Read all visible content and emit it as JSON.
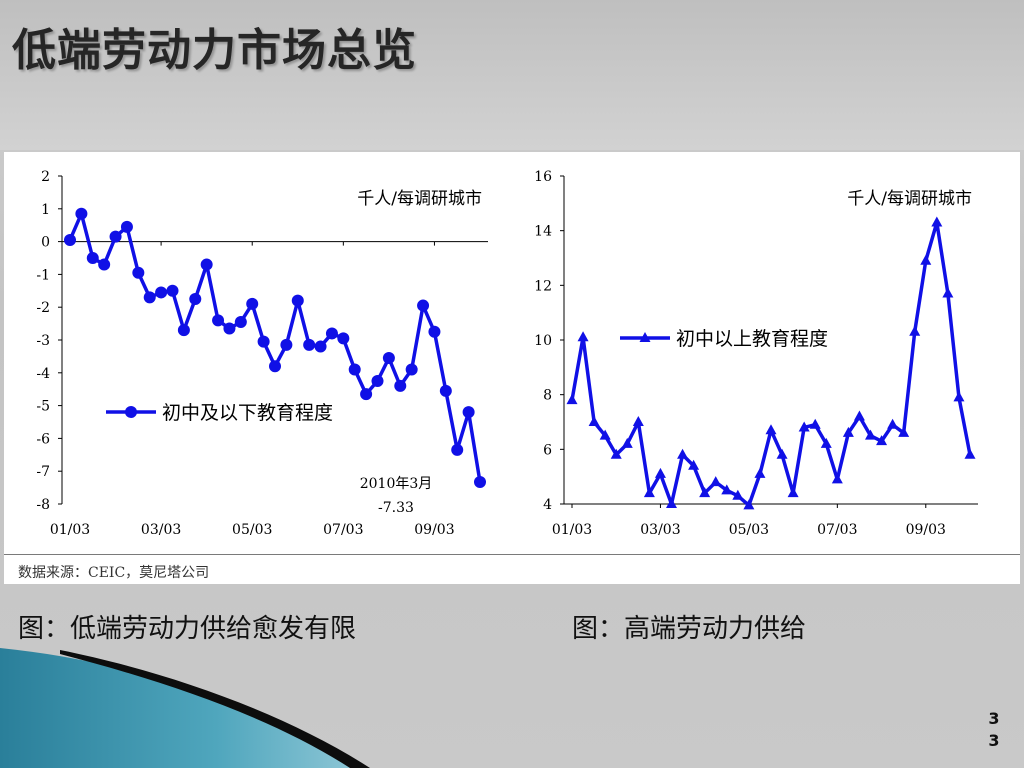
{
  "slide": {
    "title": "低端劳动力市场总览",
    "page_number": "33",
    "source_note": "数据来源：CEIC，莫尼塔公司",
    "caption_left": "图：低端劳动力供给愈发有限",
    "caption_right": "图：高端劳动力供给"
  },
  "colors": {
    "series": "#1010e6",
    "axis": "#000000",
    "title": "#262626"
  },
  "chart_data": [
    {
      "type": "line",
      "unit_label": "千人/每调研城市",
      "x_tick_labels": [
        "01/03",
        "03/03",
        "05/03",
        "07/03",
        "09/03"
      ],
      "x_tick_index": [
        0,
        8,
        16,
        24,
        32
      ],
      "y_ticks": [
        2,
        1,
        0,
        -1,
        -2,
        -3,
        -4,
        -5,
        -6,
        -7,
        -8
      ],
      "ylim": [
        -8,
        2
      ],
      "series": [
        {
          "name": "初中及以下教育程度",
          "marker": "circle",
          "values": [
            0.05,
            0.85,
            -0.5,
            -0.7,
            0.15,
            0.45,
            -0.95,
            -1.7,
            -1.55,
            -1.5,
            -2.7,
            -1.75,
            -0.7,
            -2.4,
            -2.65,
            -2.45,
            -1.9,
            -3.05,
            -3.8,
            -3.15,
            -1.8,
            -3.15,
            -3.2,
            -2.8,
            -2.95,
            -3.9,
            -4.65,
            -4.25,
            -3.55,
            -4.4,
            -3.9,
            -1.95,
            -2.75,
            -4.55,
            -6.35,
            -5.2,
            -7.33
          ]
        }
      ],
      "annotation": {
        "text": "2010年3月",
        "value_text": "-7.33"
      }
    },
    {
      "type": "line",
      "unit_label": "千人/每调研城市",
      "x_tick_labels": [
        "01/03",
        "03/03",
        "05/03",
        "07/03",
        "09/03"
      ],
      "x_tick_index": [
        0,
        8,
        16,
        24,
        32
      ],
      "y_ticks": [
        16,
        14,
        12,
        10,
        8,
        6,
        4
      ],
      "ylim": [
        4,
        16
      ],
      "series": [
        {
          "name": "初中以上教育程度",
          "marker": "triangle",
          "values": [
            7.8,
            10.1,
            7.0,
            6.5,
            5.8,
            6.2,
            7.0,
            4.4,
            5.1,
            4.0,
            5.8,
            5.4,
            4.4,
            4.8,
            4.5,
            4.3,
            3.95,
            5.1,
            6.7,
            5.8,
            4.4,
            6.8,
            6.9,
            6.2,
            4.9,
            6.6,
            7.2,
            6.5,
            6.3,
            6.9,
            6.6,
            10.3,
            12.9,
            14.3,
            11.7,
            7.9,
            5.8
          ]
        }
      ]
    }
  ]
}
